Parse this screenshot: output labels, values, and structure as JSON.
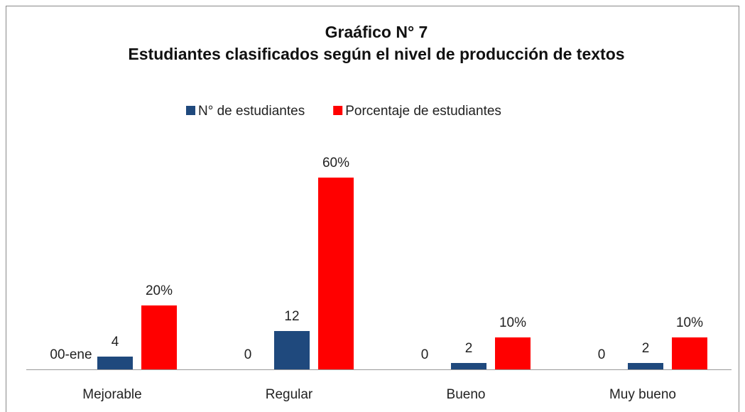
{
  "chart_data": {
    "type": "bar",
    "title": "Graáfico N° 7",
    "subtitle": "Estudiantes clasificados según el nivel de producción de textos",
    "categories": [
      "Mejorable",
      "Regular",
      "Bueno",
      "Muy bueno"
    ],
    "series": [
      {
        "color": "#4f81bd",
        "values": [
          0,
          0,
          0,
          0
        ],
        "value_labels": [
          "00-ene",
          "0",
          "0",
          "0"
        ]
      },
      {
        "name": "N° de estudiantes",
        "color": "#1f497d",
        "values": [
          4,
          12,
          2,
          2
        ]
      },
      {
        "name": "Porcentaje de estudiantes",
        "color": "#ff0000",
        "values": [
          20,
          60,
          10,
          10
        ],
        "value_labels": [
          "20%",
          "60%",
          "10%",
          "10%"
        ]
      }
    ],
    "ylim": [
      0,
      70
    ],
    "legend": "top"
  }
}
